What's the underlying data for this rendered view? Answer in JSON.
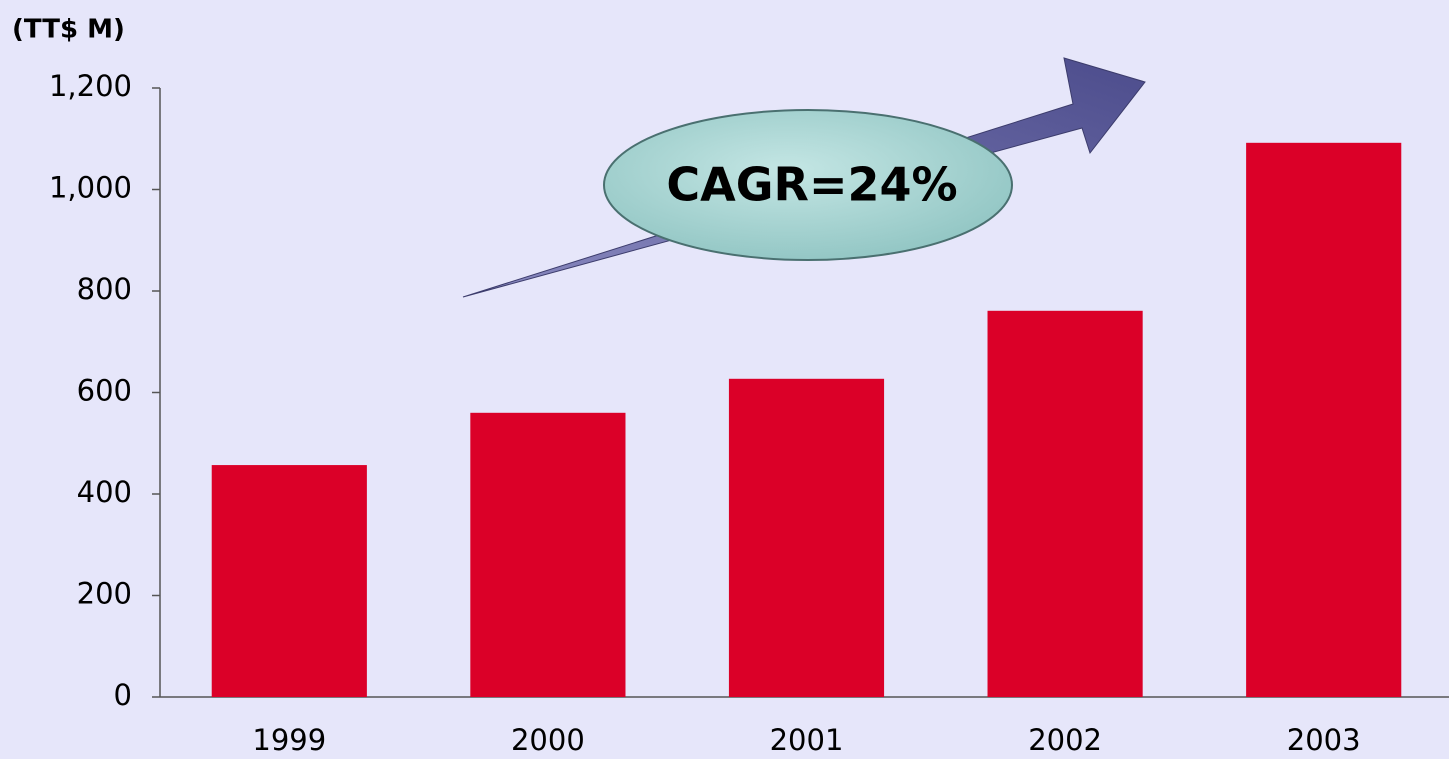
{
  "chart_data": {
    "type": "bar",
    "y_label": "(TT$ M)",
    "annotation": "CAGR=24%",
    "categories": [
      "1999",
      "2000",
      "2001",
      "2002",
      "2003"
    ],
    "values": [
      457,
      560,
      627,
      761,
      1092
    ],
    "color": "#db0028",
    "ylim": [
      0,
      1200
    ],
    "yticks": [
      0,
      200,
      400,
      600,
      800,
      {
        "value": 1000,
        "label": "1,000"
      },
      {
        "value": 1200,
        "label": "1,200"
      }
    ],
    "grid": false
  }
}
